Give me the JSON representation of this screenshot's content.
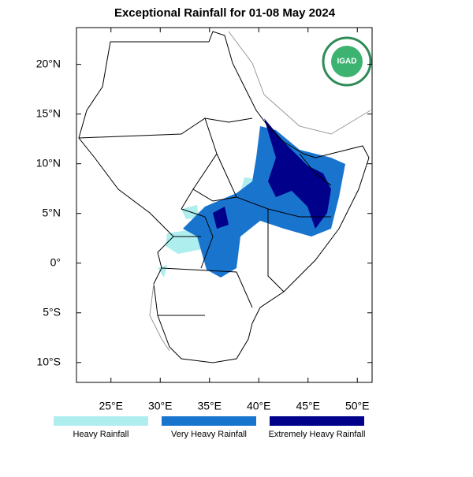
{
  "chart_data": {
    "type": "map",
    "title": "Exceptional Rainfall for 01-08 May 2024",
    "logo_text": "IGAD",
    "xlim": [
      21.5,
      51.5
    ],
    "ylim": [
      -12,
      23.7
    ],
    "xticks": [
      {
        "value": 25,
        "label": "25°E"
      },
      {
        "value": 30,
        "label": "30°E"
      },
      {
        "value": 35,
        "label": "35°E"
      },
      {
        "value": 40,
        "label": "40°E"
      },
      {
        "value": 45,
        "label": "45°E"
      },
      {
        "value": 50,
        "label": "50°E"
      }
    ],
    "yticks": [
      {
        "value": 20,
        "label": "20°N"
      },
      {
        "value": 15,
        "label": "15°N"
      },
      {
        "value": 10,
        "label": "10°N"
      },
      {
        "value": 5,
        "label": "5°N"
      },
      {
        "value": 0,
        "label": "0°"
      },
      {
        "value": -5,
        "label": "5°S"
      },
      {
        "value": -10,
        "label": "10°S"
      }
    ],
    "legend": [
      {
        "name": "Heavy Rainfall",
        "color": "#aeeeee"
      },
      {
        "name": "Very Heavy Rainfall",
        "color": "#1874cd"
      },
      {
        "name": "Extremely Heavy Rainfall",
        "color": "#00008b"
      }
    ]
  }
}
